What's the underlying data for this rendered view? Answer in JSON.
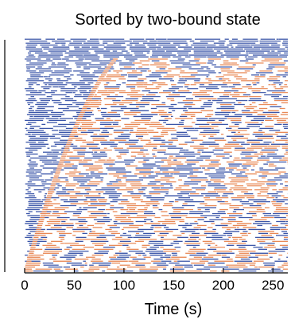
{
  "chart_data": {
    "type": "heatmap",
    "title": "Sorted by two-bound state",
    "xlabel": "Time (s)",
    "ylabel": "",
    "xlim": [
      0,
      265
    ],
    "x_ticks": [
      0,
      50,
      100,
      150,
      200,
      250
    ],
    "x_tick_labels": [
      "0",
      "50",
      "100",
      "150",
      "200",
      "250"
    ],
    "series": [
      {
        "key": "one_bound",
        "color": "#3a55a8"
      },
      {
        "key": "two_bound",
        "color": "#e88855"
      }
    ],
    "row_count": 118,
    "sort_onset_first_row": 123,
    "sort_onset_last_row": 2
  }
}
